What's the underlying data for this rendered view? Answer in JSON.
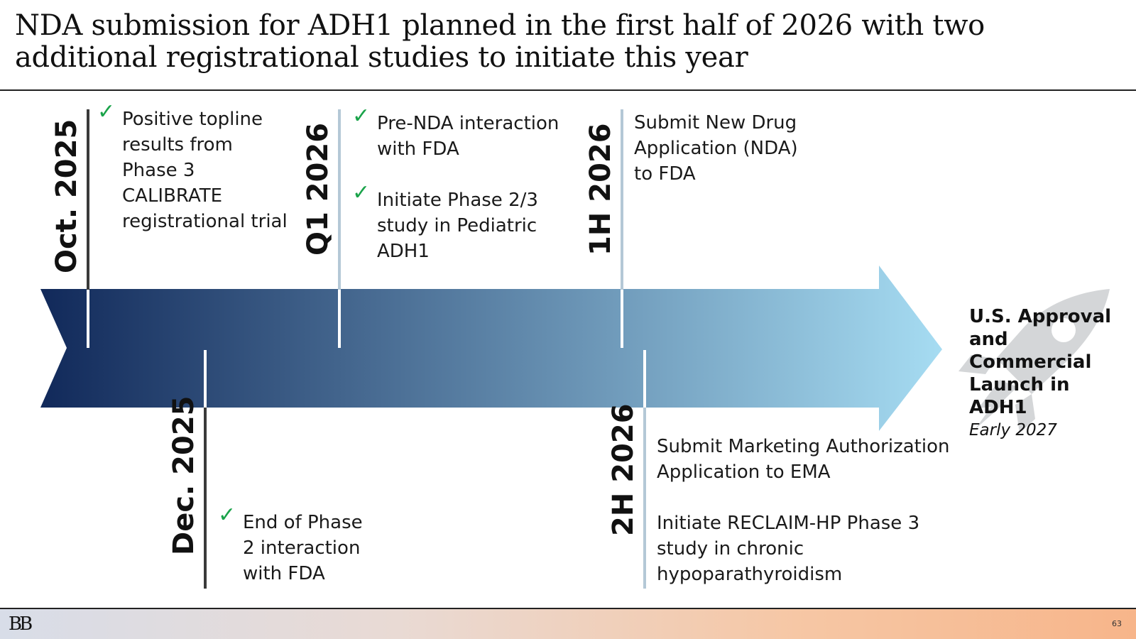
{
  "slide": {
    "title_line1": "NDA submission for ADH1 planned in the first half of 2026 with two",
    "title_line2": "additional registrational studies to initiate this year",
    "page_number": "63",
    "logo_text": "BB"
  },
  "colors": {
    "arrow_start": "#11295a",
    "arrow_end": "#a6dcf2",
    "check": "#1aa34a",
    "rocket": "#d4d6d8"
  },
  "milestones": {
    "oct2025": {
      "date": "Oct. 2025",
      "lines": [
        "Positive topline",
        "results from",
        "Phase 3",
        "CALIBRATE",
        "registrational trial"
      ]
    },
    "dec2025": {
      "date": "Dec. 2025",
      "lines": [
        "End of Phase",
        "2 interaction",
        "with FDA"
      ]
    },
    "q12026": {
      "date": "Q1 2026",
      "item1": [
        "Pre-NDA interaction",
        "with FDA"
      ],
      "item2": [
        "Initiate Phase 2/3",
        "study in Pediatric",
        "ADH1"
      ]
    },
    "h12026": {
      "date": "1H 2026",
      "lines": [
        "Submit New Drug",
        "Application (NDA)",
        "to FDA"
      ]
    },
    "h22026": {
      "date": "2H 2026",
      "item1": [
        "Submit Marketing Authorization",
        "Application to EMA"
      ],
      "item2": [
        "Initiate RECLAIM-HP Phase 3",
        "study in chronic",
        "hypoparathyroidism"
      ]
    }
  },
  "approval": {
    "lines": [
      "U.S. Approval",
      "and",
      "Commercial",
      "Launch in",
      "ADH1"
    ],
    "sub": "Early 2027"
  }
}
